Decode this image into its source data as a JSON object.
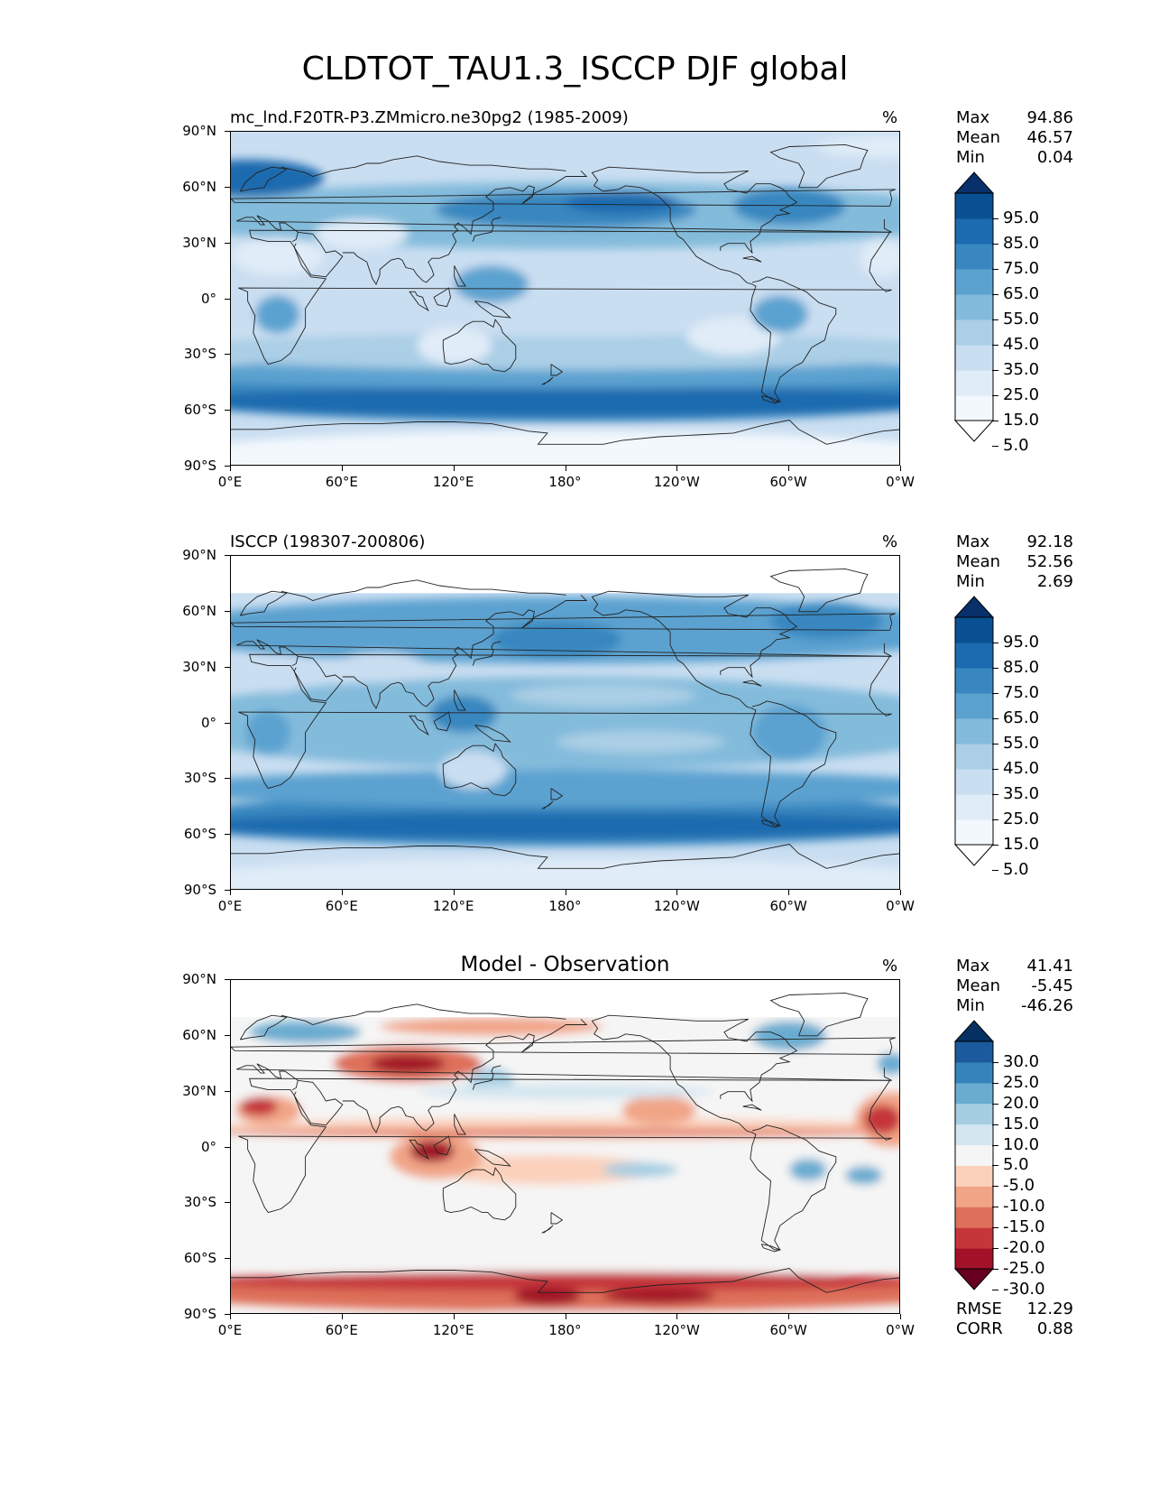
{
  "title": "CLDTOT_TAU1.3_ISCCP DJF global",
  "lat_labels": [
    "90°N",
    "60°N",
    "30°N",
    "0°",
    "30°S",
    "60°S",
    "90°S"
  ],
  "lon_labels": [
    "0°E",
    "60°E",
    "120°E",
    "180°",
    "120°W",
    "60°W",
    "0°W"
  ],
  "panels": [
    {
      "title": "mc_lnd.F20TR-P3.ZMmicro.ne30pg2 (1985-2009)",
      "title_position": "left",
      "units": "%",
      "stats": {
        "max_label": "Max",
        "max": "94.86",
        "mean_label": "Mean",
        "mean": "46.57",
        "min_label": "Min",
        "min": "0.04"
      },
      "colorbar_ticks": [
        "95.0",
        "85.0",
        "75.0",
        "65.0",
        "55.0",
        "45.0",
        "35.0",
        "25.0",
        "15.0",
        "5.0"
      ],
      "colormap": "Blues",
      "colors": [
        "#ffffff",
        "#f3f8fd",
        "#e0ecf8",
        "#cadef1",
        "#abcfe6",
        "#83bbdb",
        "#5ba2d0",
        "#3987c0",
        "#1c6aaf",
        "#0a4f91",
        "#08306b"
      ]
    },
    {
      "title": "ISCCP (198307-200806)",
      "title_position": "left",
      "units": "%",
      "stats": {
        "max_label": "Max",
        "max": "92.18",
        "mean_label": "Mean",
        "mean": "52.56",
        "min_label": "Min",
        "min": "2.69"
      },
      "colorbar_ticks": [
        "95.0",
        "85.0",
        "75.0",
        "65.0",
        "55.0",
        "45.0",
        "35.0",
        "25.0",
        "15.0",
        "5.0"
      ],
      "colormap": "Blues",
      "colors": [
        "#ffffff",
        "#f3f8fd",
        "#e0ecf8",
        "#cadef1",
        "#abcfe6",
        "#83bbdb",
        "#5ba2d0",
        "#3987c0",
        "#1c6aaf",
        "#0a4f91",
        "#08306b"
      ]
    },
    {
      "title": "Model - Observation",
      "title_position": "center",
      "units": "%",
      "stats": {
        "max_label": "Max",
        "max": "41.41",
        "mean_label": "Mean",
        "mean": "-5.45",
        "min_label": "Min",
        "min": "-46.26"
      },
      "colorbar_ticks": [
        "30.0",
        "25.0",
        "20.0",
        "15.0",
        "10.0",
        "5.0",
        "-5.0",
        "-10.0",
        "-15.0",
        "-20.0",
        "-25.0",
        "-30.0"
      ],
      "colormap": "RdBu_r",
      "colors": [
        "#67001f",
        "#a11228",
        "#c5363a",
        "#de6f5a",
        "#f1a587",
        "#fbd1bc",
        "#f5f5f5",
        "#d4e6f0",
        "#a5cee3",
        "#6aacd0",
        "#3583bb",
        "#1b5a9c",
        "#053061"
      ],
      "footer": {
        "rmse_label": "RMSE",
        "rmse": "12.29",
        "corr_label": "CORR",
        "corr": "0.88"
      }
    }
  ]
}
